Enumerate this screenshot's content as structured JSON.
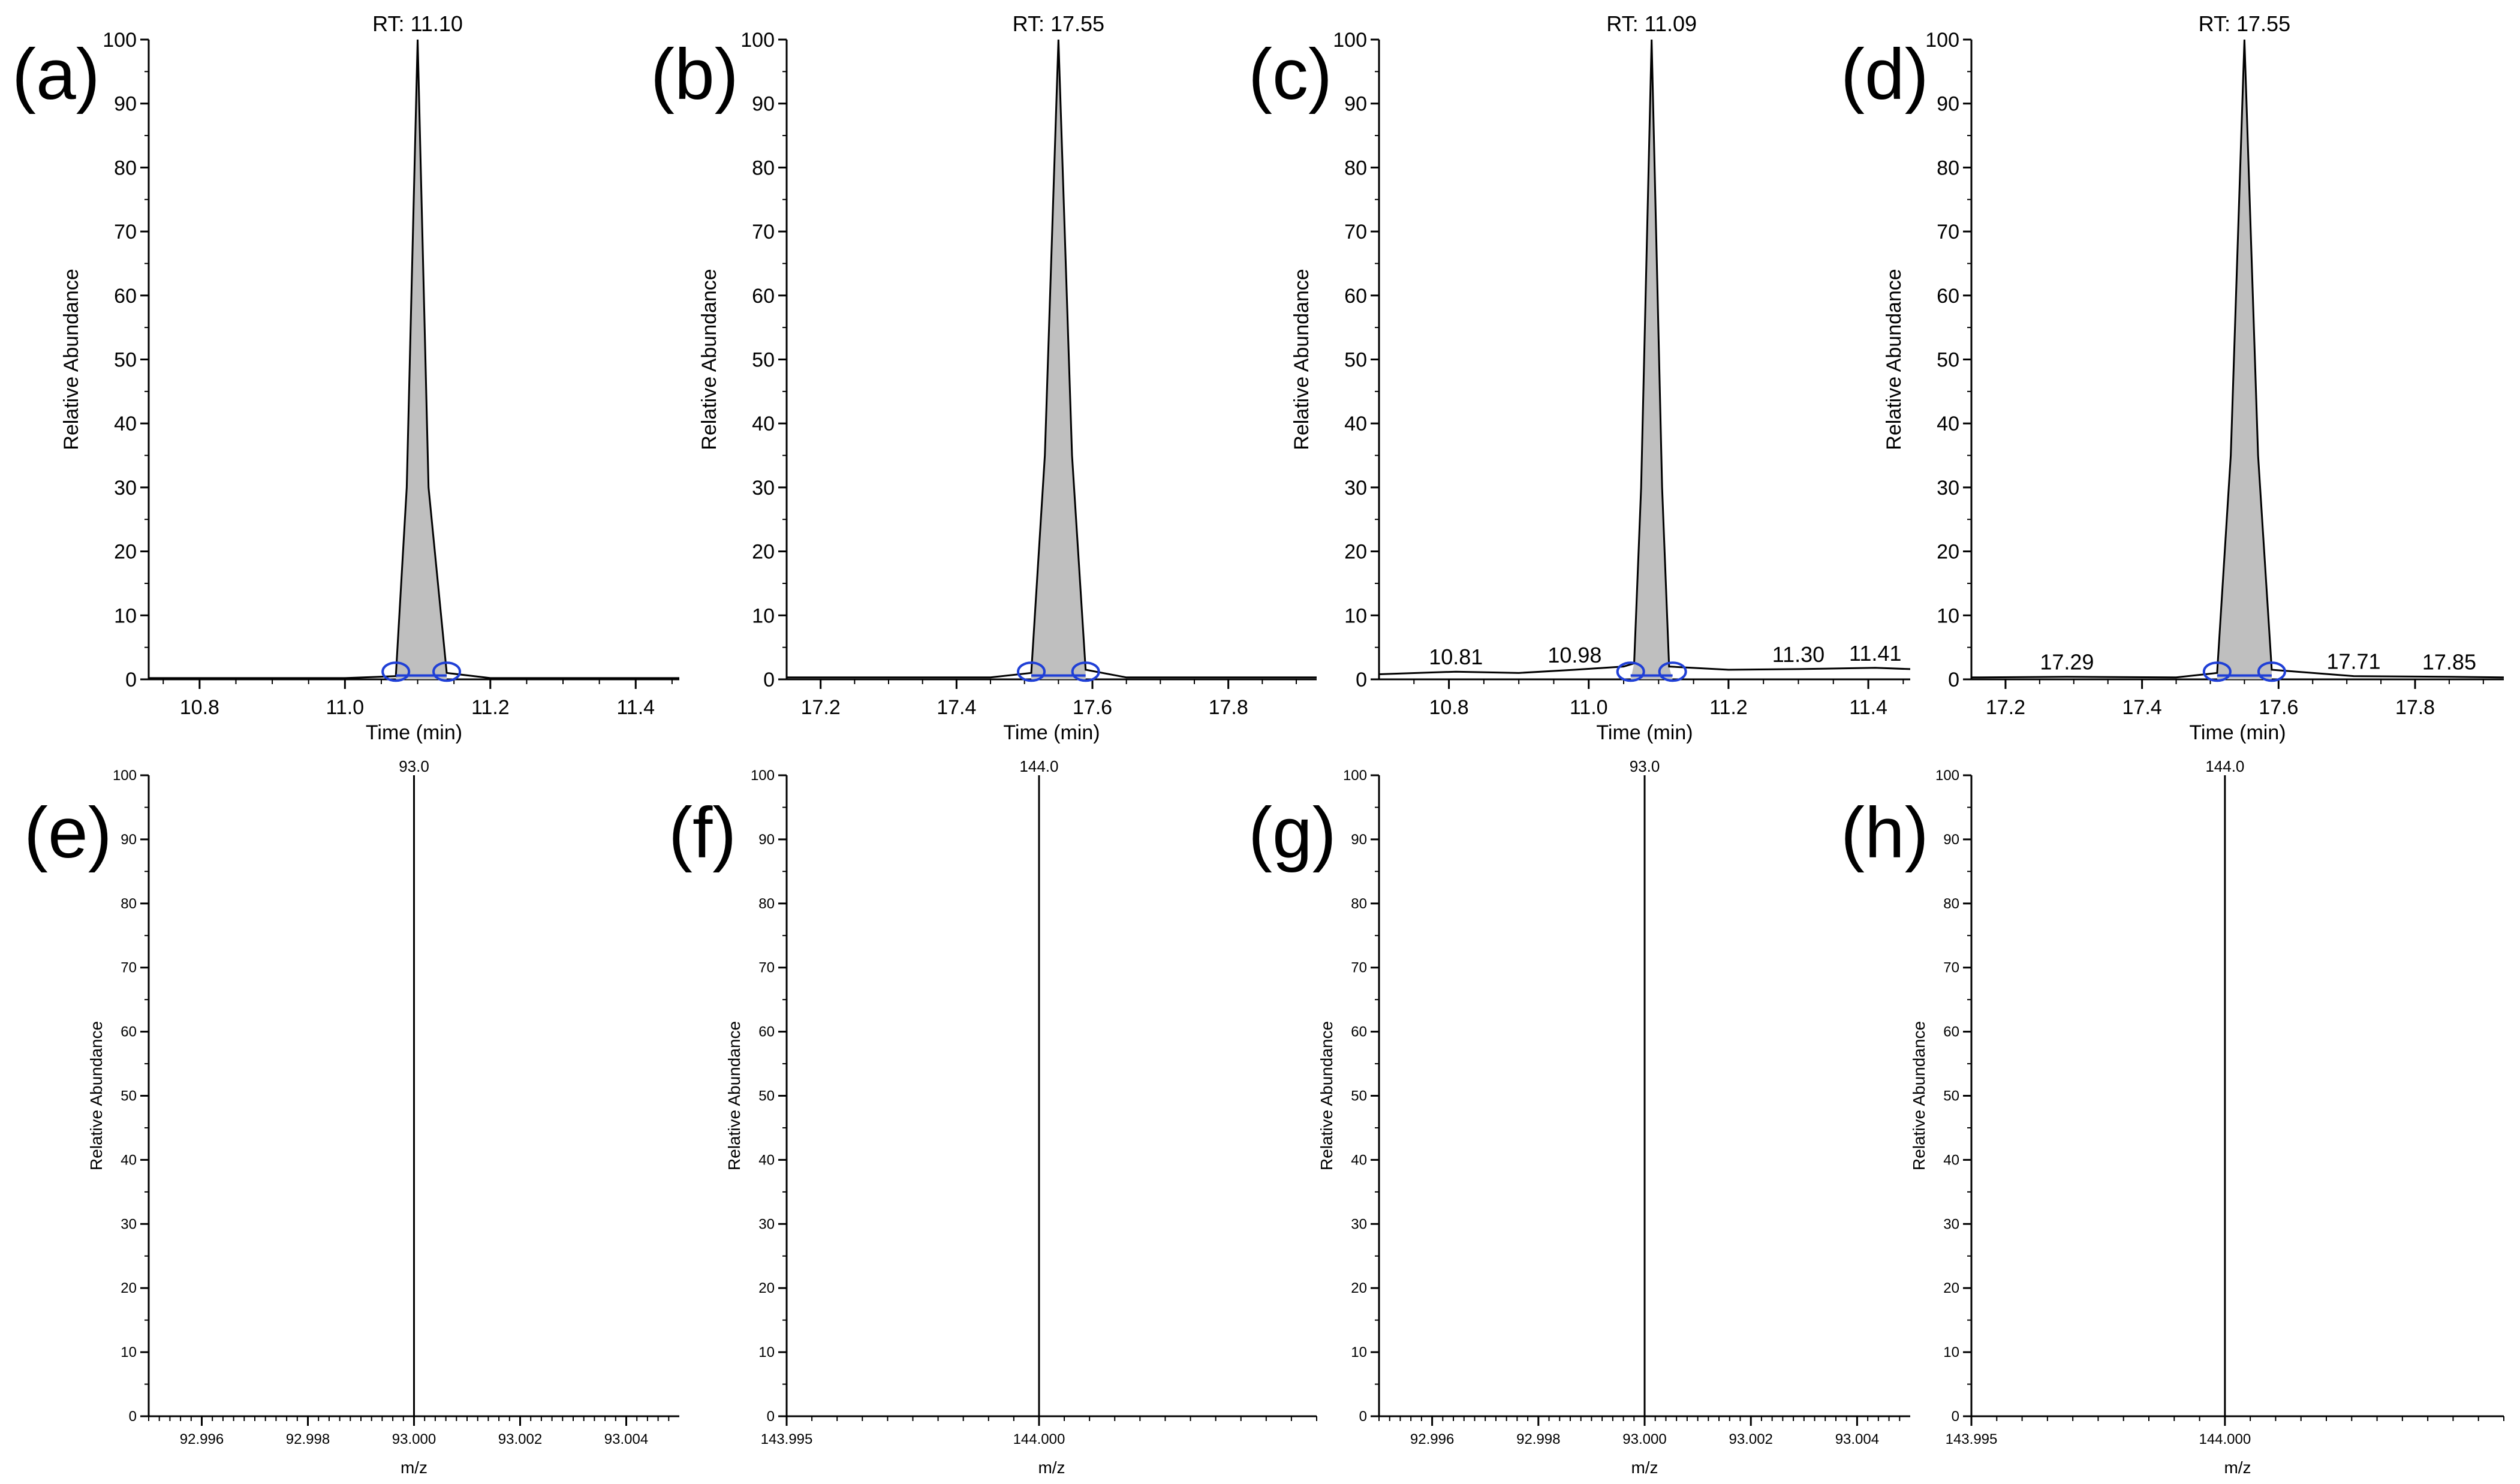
{
  "chart_data": [
    {
      "id": "a",
      "type": "line",
      "panel_label": "(a)",
      "xlabel": "Time (min)",
      "ylabel": "Relative Abundance",
      "xlim": [
        10.73,
        11.46
      ],
      "ylim": [
        0,
        100
      ],
      "xticks": [
        "10.8",
        "11.0",
        "11.2",
        "11.4"
      ],
      "yticks": [
        "0",
        "10",
        "20",
        "30",
        "40",
        "50",
        "60",
        "70",
        "80",
        "90",
        "100"
      ],
      "x": [
        10.73,
        11.0,
        11.07,
        11.085,
        11.1,
        11.115,
        11.14,
        11.2,
        11.46
      ],
      "y": [
        0.2,
        0.2,
        0.5,
        30,
        100,
        30,
        1,
        0.2,
        0.2
      ],
      "fill_range": [
        11.07,
        11.14
      ],
      "peak_markers": [
        11.07,
        11.14
      ],
      "annotations": [
        {
          "x": 11.1,
          "y": 100,
          "text": "RT: 11.10"
        }
      ]
    },
    {
      "id": "b",
      "type": "line",
      "panel_label": "(b)",
      "xlabel": "Time (min)",
      "ylabel": "Relative Abundance",
      "xlim": [
        17.15,
        17.93
      ],
      "ylim": [
        0,
        100
      ],
      "xticks": [
        "17.2",
        "17.4",
        "17.6",
        "17.8"
      ],
      "yticks": [
        "0",
        "10",
        "20",
        "30",
        "40",
        "50",
        "60",
        "70",
        "80",
        "90",
        "100"
      ],
      "x": [
        17.15,
        17.45,
        17.51,
        17.53,
        17.55,
        17.57,
        17.59,
        17.65,
        17.93
      ],
      "y": [
        0.3,
        0.3,
        1,
        35,
        100,
        35,
        1.5,
        0.3,
        0.3
      ],
      "fill_range": [
        17.51,
        17.59
      ],
      "peak_markers": [
        17.51,
        17.59
      ],
      "annotations": [
        {
          "x": 17.55,
          "y": 100,
          "text": "RT: 17.55"
        }
      ]
    },
    {
      "id": "c",
      "type": "line",
      "panel_label": "(c)",
      "xlabel": "Time (min)",
      "ylabel": "Relative Abundance",
      "xlim": [
        10.7,
        11.46
      ],
      "ylim": [
        0,
        100
      ],
      "xticks": [
        "10.8",
        "11.0",
        "11.2",
        "11.4"
      ],
      "yticks": [
        "0",
        "10",
        "20",
        "30",
        "40",
        "50",
        "60",
        "70",
        "80",
        "90",
        "100"
      ],
      "x": [
        10.7,
        10.81,
        10.9,
        10.98,
        11.05,
        11.065,
        11.075,
        11.09,
        11.105,
        11.115,
        11.2,
        11.3,
        11.41,
        11.46
      ],
      "y": [
        0.8,
        1.2,
        1.0,
        1.5,
        2.0,
        2.5,
        30,
        100,
        30,
        2.0,
        1.5,
        1.6,
        1.8,
        1.6
      ],
      "fill_range": [
        11.06,
        11.12
      ],
      "peak_markers": [
        11.06,
        11.12
      ],
      "annotations": [
        {
          "x": 11.09,
          "y": 100,
          "text": "RT: 11.09"
        },
        {
          "x": 10.81,
          "y": 1.2,
          "text": "10.81"
        },
        {
          "x": 10.98,
          "y": 1.5,
          "text": "10.98"
        },
        {
          "x": 11.3,
          "y": 1.6,
          "text": "11.30"
        },
        {
          "x": 11.41,
          "y": 1.8,
          "text": "11.41"
        }
      ]
    },
    {
      "id": "d",
      "type": "line",
      "panel_label": "(d)",
      "xlabel": "Time (min)",
      "ylabel": "Relative Abundance",
      "xlim": [
        17.15,
        17.93
      ],
      "ylim": [
        0,
        100
      ],
      "xticks": [
        "17.2",
        "17.4",
        "17.6",
        "17.8"
      ],
      "yticks": [
        "0",
        "10",
        "20",
        "30",
        "40",
        "50",
        "60",
        "70",
        "80",
        "90",
        "100"
      ],
      "x": [
        17.15,
        17.29,
        17.45,
        17.51,
        17.53,
        17.55,
        17.57,
        17.59,
        17.71,
        17.85,
        17.93
      ],
      "y": [
        0.3,
        0.4,
        0.3,
        1,
        35,
        100,
        35,
        1.5,
        0.5,
        0.4,
        0.3
      ],
      "fill_range": [
        17.51,
        17.59
      ],
      "peak_markers": [
        17.51,
        17.59
      ],
      "annotations": [
        {
          "x": 17.55,
          "y": 100,
          "text": "RT: 17.55"
        },
        {
          "x": 17.29,
          "y": 0.4,
          "text": "17.29"
        },
        {
          "x": 17.71,
          "y": 0.5,
          "text": "17.71"
        },
        {
          "x": 17.85,
          "y": 0.4,
          "text": "17.85"
        }
      ]
    },
    {
      "id": "e",
      "type": "bar",
      "panel_label": "(e)",
      "xlabel": "m/z",
      "ylabel": "Relative Abundance",
      "xlim": [
        92.995,
        93.005
      ],
      "ylim": [
        0,
        100
      ],
      "xticks": [
        "92.996",
        "92.998",
        "93.000",
        "93.002",
        "93.004"
      ],
      "yticks": [
        "0",
        "10",
        "20",
        "30",
        "40",
        "50",
        "60",
        "70",
        "80",
        "90",
        "100"
      ],
      "peaks": [
        {
          "x": 93.0,
          "y": 100,
          "label": "93.0"
        }
      ]
    },
    {
      "id": "f",
      "type": "bar",
      "panel_label": "(f)",
      "xlabel": "m/z",
      "ylabel": "Relative Abundance",
      "xlim": [
        143.995,
        144.0055
      ],
      "ylim": [
        0,
        100
      ],
      "xticks": [
        "143.995",
        "144.000"
      ],
      "yticks": [
        "0",
        "10",
        "20",
        "30",
        "40",
        "50",
        "60",
        "70",
        "80",
        "90",
        "100"
      ],
      "peaks": [
        {
          "x": 144.0,
          "y": 100,
          "label": "144.0"
        }
      ]
    },
    {
      "id": "g",
      "type": "bar",
      "panel_label": "(g)",
      "xlabel": "m/z",
      "ylabel": "Relative Abundance",
      "xlim": [
        92.995,
        93.005
      ],
      "ylim": [
        0,
        100
      ],
      "xticks": [
        "92.996",
        "92.998",
        "93.000",
        "93.002",
        "93.004"
      ],
      "yticks": [
        "0",
        "10",
        "20",
        "30",
        "40",
        "50",
        "60",
        "70",
        "80",
        "90",
        "100"
      ],
      "peaks": [
        {
          "x": 93.0,
          "y": 100,
          "label": "93.0"
        }
      ]
    },
    {
      "id": "h",
      "type": "bar",
      "panel_label": "(h)",
      "xlabel": "m/z",
      "ylabel": "Relative Abundance",
      "xlim": [
        143.995,
        144.0055
      ],
      "ylim": [
        0,
        100
      ],
      "xticks": [
        "143.995",
        "144.000"
      ],
      "yticks": [
        "0",
        "10",
        "20",
        "30",
        "40",
        "50",
        "60",
        "70",
        "80",
        "90",
        "100"
      ],
      "peaks": [
        {
          "x": 144.0,
          "y": 100,
          "label": "144.0"
        }
      ]
    }
  ]
}
